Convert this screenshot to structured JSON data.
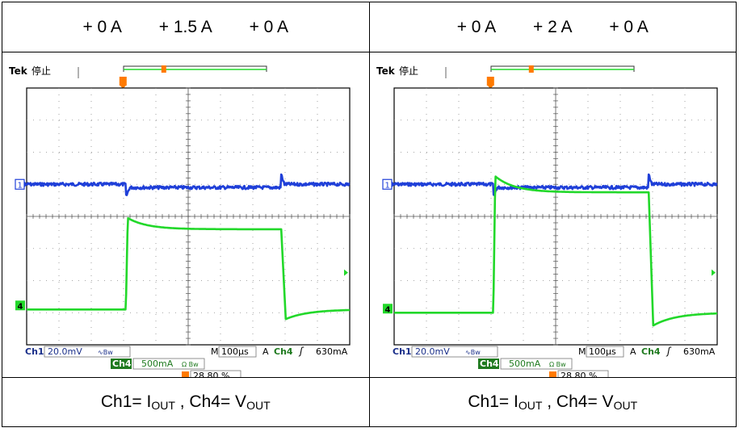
{
  "colors": {
    "ch1": "#1f3fd8",
    "ch4": "#22d82a",
    "trigger": "#ff7a00",
    "screen": "#ffffff",
    "border": "#000000",
    "tab": "#1f7a1f"
  },
  "chart_data": [
    {
      "type": "line",
      "title": "+0 A → +1.5 A → +0 A",
      "header": [
        "+ 0 A",
        "+ 1.5 A",
        "+ 0 A"
      ],
      "caption": {
        "ch1": "Ch1= I",
        "ch1_sub": "OUT",
        "sep": " , ",
        "ch4": "Ch4= V",
        "ch4_sub": "OUT"
      },
      "scope": {
        "brand": "Tek",
        "state": "停止",
        "ch1_scale": "20.0mV",
        "ch1_coupling": "∿Bw",
        "ch4_scale": "500mA",
        "ch4_coupling": "Ω Bw",
        "timebase": "100µs",
        "trig_src": "Ch4",
        "trig_level": "630mA",
        "trig_pos": "28.80 %",
        "ch1_label": "Ch1",
        "ch4_label": "Ch4",
        "m_label": "M",
        "a_label": "A"
      },
      "x_unit": "µs",
      "xlim": [
        0,
        1000
      ],
      "step_on_us": 307,
      "step_off_us": 788,
      "series": [
        {
          "name": "Ch1",
          "div_levels": {
            "base": 1.0,
            "during": 0.9,
            "dip": 0.6,
            "spike": 1.3
          }
        },
        {
          "name": "Ch4",
          "div_levels": {
            "base": -2.9,
            "peak": -0.05,
            "settle": -0.4,
            "undershoot": -3.2
          }
        }
      ]
    },
    {
      "type": "line",
      "title": "+0 A → +2 A → +0 A",
      "header": [
        "+ 0 A",
        "+ 2 A",
        "+ 0 A"
      ],
      "caption": {
        "ch1": "Ch1= I",
        "ch1_sub": "OUT",
        "sep": " , ",
        "ch4": "Ch4= V",
        "ch4_sub": "OUT"
      },
      "scope": {
        "brand": "Tek",
        "state": "停止",
        "ch1_scale": "20.0mV",
        "ch1_coupling": "∿Bw",
        "ch4_scale": "500mA",
        "ch4_coupling": "Ω Bw",
        "timebase": "100µs",
        "trig_src": "Ch4",
        "trig_level": "630mA",
        "trig_pos": "28.80 %",
        "ch1_label": "Ch1",
        "ch4_label": "Ch4",
        "m_label": "M",
        "a_label": "A"
      },
      "x_unit": "µs",
      "xlim": [
        0,
        1000
      ],
      "step_on_us": 307,
      "step_off_us": 788,
      "series": [
        {
          "name": "Ch1",
          "div_levels": {
            "base": 1.0,
            "during": 0.9,
            "dip": 0.6,
            "spike": 1.3
          }
        },
        {
          "name": "Ch4",
          "div_levels": {
            "base": -3.0,
            "peak": 1.25,
            "settle": 0.75,
            "undershoot": -3.4
          }
        }
      ]
    }
  ]
}
